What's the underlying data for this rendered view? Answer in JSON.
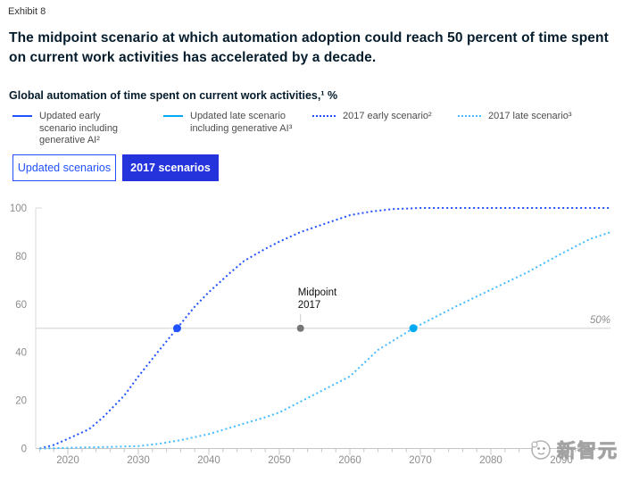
{
  "exhibit_label": "Exhibit 8",
  "title": "The midpoint scenario at which automation adoption could reach 50 percent of time spent on current work activities has accelerated by a decade.",
  "subtitle": "Global automation of time spent on current work activities,¹ %",
  "legend": {
    "items": [
      {
        "label": "Updated early scenario including generative AI²",
        "style": "solid",
        "color": "#2251ff"
      },
      {
        "label": "Updated late scenario including generative AI³",
        "style": "solid",
        "color": "#00a9f4"
      },
      {
        "label": "2017 early scenario²",
        "style": "dotted",
        "color": "#2251ff"
      },
      {
        "label": "2017 late scenario³",
        "style": "dotted",
        "color": "#45bcff"
      }
    ]
  },
  "tabs": [
    {
      "label": "Updated scenarios",
      "active": false
    },
    {
      "label": "2017 scenarios",
      "active": true
    }
  ],
  "watermark": {
    "text": "新智元"
  },
  "colors": {
    "brand_blue": "#2251ff",
    "active_tab_blue": "#2433dc",
    "cyan": "#00a9f4",
    "light_cyan_dotted": "#45bcff",
    "axis_text": "#8c8c8c",
    "axis_line": "#d9d9d9",
    "baseline": "#c4c4c4",
    "annotation_dot": "#767676"
  },
  "chart_data": {
    "type": "line",
    "title": "Global automation of time spent on current work activities, %",
    "x_axis": {
      "tick_labels": [
        2020,
        2030,
        2040,
        2050,
        2060,
        2070,
        2080,
        2090
      ],
      "range": [
        2016,
        2097
      ],
      "minor_tick_step_years": 2
    },
    "y_axis": {
      "tick_labels": [
        0,
        20,
        40,
        60,
        80,
        100
      ],
      "range": [
        0,
        100
      ]
    },
    "grid": "off",
    "legend_position": "top",
    "reference_line": {
      "value": 50,
      "label": "50%"
    },
    "annotation": {
      "lines": [
        "Midpoint",
        "2017"
      ],
      "x": 2053,
      "y": 50
    },
    "series": [
      {
        "name": "2017 early scenario",
        "style": "dotted",
        "color": "#2251ff",
        "marker": {
          "x": 2035.5,
          "y": 50
        },
        "points": [
          [
            2016,
            0
          ],
          [
            2018,
            1.5
          ],
          [
            2020,
            4
          ],
          [
            2023,
            8
          ],
          [
            2025,
            13
          ],
          [
            2028,
            22
          ],
          [
            2030,
            30
          ],
          [
            2033,
            41
          ],
          [
            2035.5,
            50
          ],
          [
            2038,
            59
          ],
          [
            2040,
            65
          ],
          [
            2043,
            73
          ],
          [
            2045,
            78
          ],
          [
            2048,
            83
          ],
          [
            2050,
            86
          ],
          [
            2053,
            90
          ],
          [
            2055,
            92
          ],
          [
            2058,
            95
          ],
          [
            2060,
            97
          ],
          [
            2063,
            98.5
          ],
          [
            2066,
            99.5
          ],
          [
            2070,
            100
          ],
          [
            2097,
            100
          ]
        ]
      },
      {
        "name": "2017 late scenario",
        "style": "dotted",
        "color": "#45bcff",
        "marker": {
          "x": 2069,
          "y": 50,
          "color": "#00a9f4"
        },
        "points": [
          [
            2016,
            0
          ],
          [
            2020,
            0.3
          ],
          [
            2025,
            0.6
          ],
          [
            2030,
            1
          ],
          [
            2033,
            2
          ],
          [
            2036,
            3.5
          ],
          [
            2040,
            6
          ],
          [
            2044,
            9.5
          ],
          [
            2048,
            13
          ],
          [
            2050,
            15
          ],
          [
            2054,
            21
          ],
          [
            2058,
            27
          ],
          [
            2060,
            30
          ],
          [
            2064,
            41
          ],
          [
            2069,
            50
          ],
          [
            2075,
            59
          ],
          [
            2080,
            66
          ],
          [
            2085,
            73
          ],
          [
            2090,
            81
          ],
          [
            2094,
            87
          ],
          [
            2097,
            90
          ]
        ]
      }
    ]
  }
}
